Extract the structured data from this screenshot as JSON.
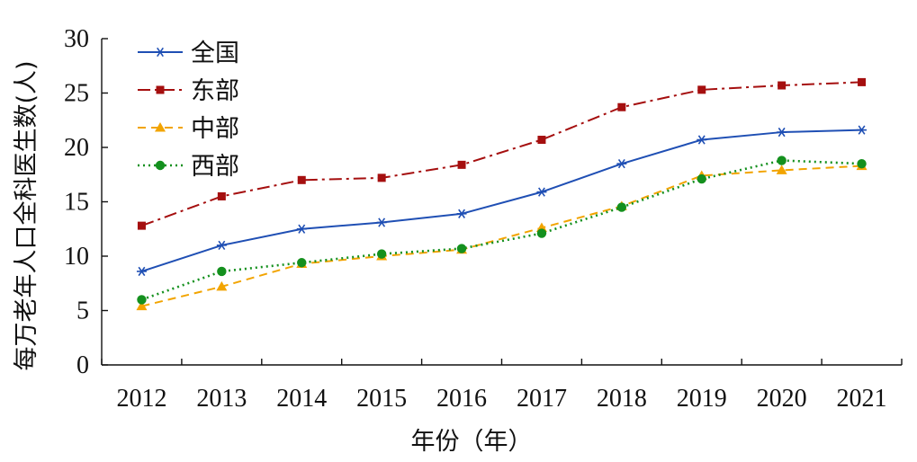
{
  "chart_data": {
    "type": "line",
    "title": "",
    "xlabel": "年份（年）",
    "ylabel": "每万老年人口全科医生数(人)",
    "ylim": [
      0,
      30
    ],
    "yticks": [
      "0",
      "5",
      "10",
      "15",
      "20",
      "25",
      "30"
    ],
    "categories": [
      "2012",
      "2013",
      "2014",
      "2015",
      "2016",
      "2017",
      "2018",
      "2019",
      "2020",
      "2021"
    ],
    "grid": false,
    "legend_position": "top-left",
    "series": [
      {
        "name": "全国",
        "color": "#1f4fb4",
        "dash": "",
        "marker": "star",
        "values": [
          8.6,
          11.0,
          12.5,
          13.1,
          13.9,
          15.9,
          18.5,
          20.7,
          21.4,
          21.6
        ]
      },
      {
        "name": "东部",
        "color": "#a50f0f",
        "dash": "14,5,3,5",
        "marker": "square",
        "values": [
          12.8,
          15.5,
          17.0,
          17.2,
          18.4,
          20.7,
          23.7,
          25.3,
          25.7,
          26.0
        ]
      },
      {
        "name": "中部",
        "color": "#f2a400",
        "dash": "9,6",
        "marker": "triangle",
        "values": [
          5.4,
          7.2,
          9.3,
          10.0,
          10.6,
          12.6,
          14.6,
          17.4,
          17.9,
          18.3
        ]
      },
      {
        "name": "西部",
        "color": "#14901e",
        "dash": "2,4",
        "marker": "circle",
        "values": [
          6.0,
          8.6,
          9.4,
          10.2,
          10.7,
          12.1,
          14.5,
          17.1,
          18.8,
          18.5
        ]
      }
    ]
  }
}
